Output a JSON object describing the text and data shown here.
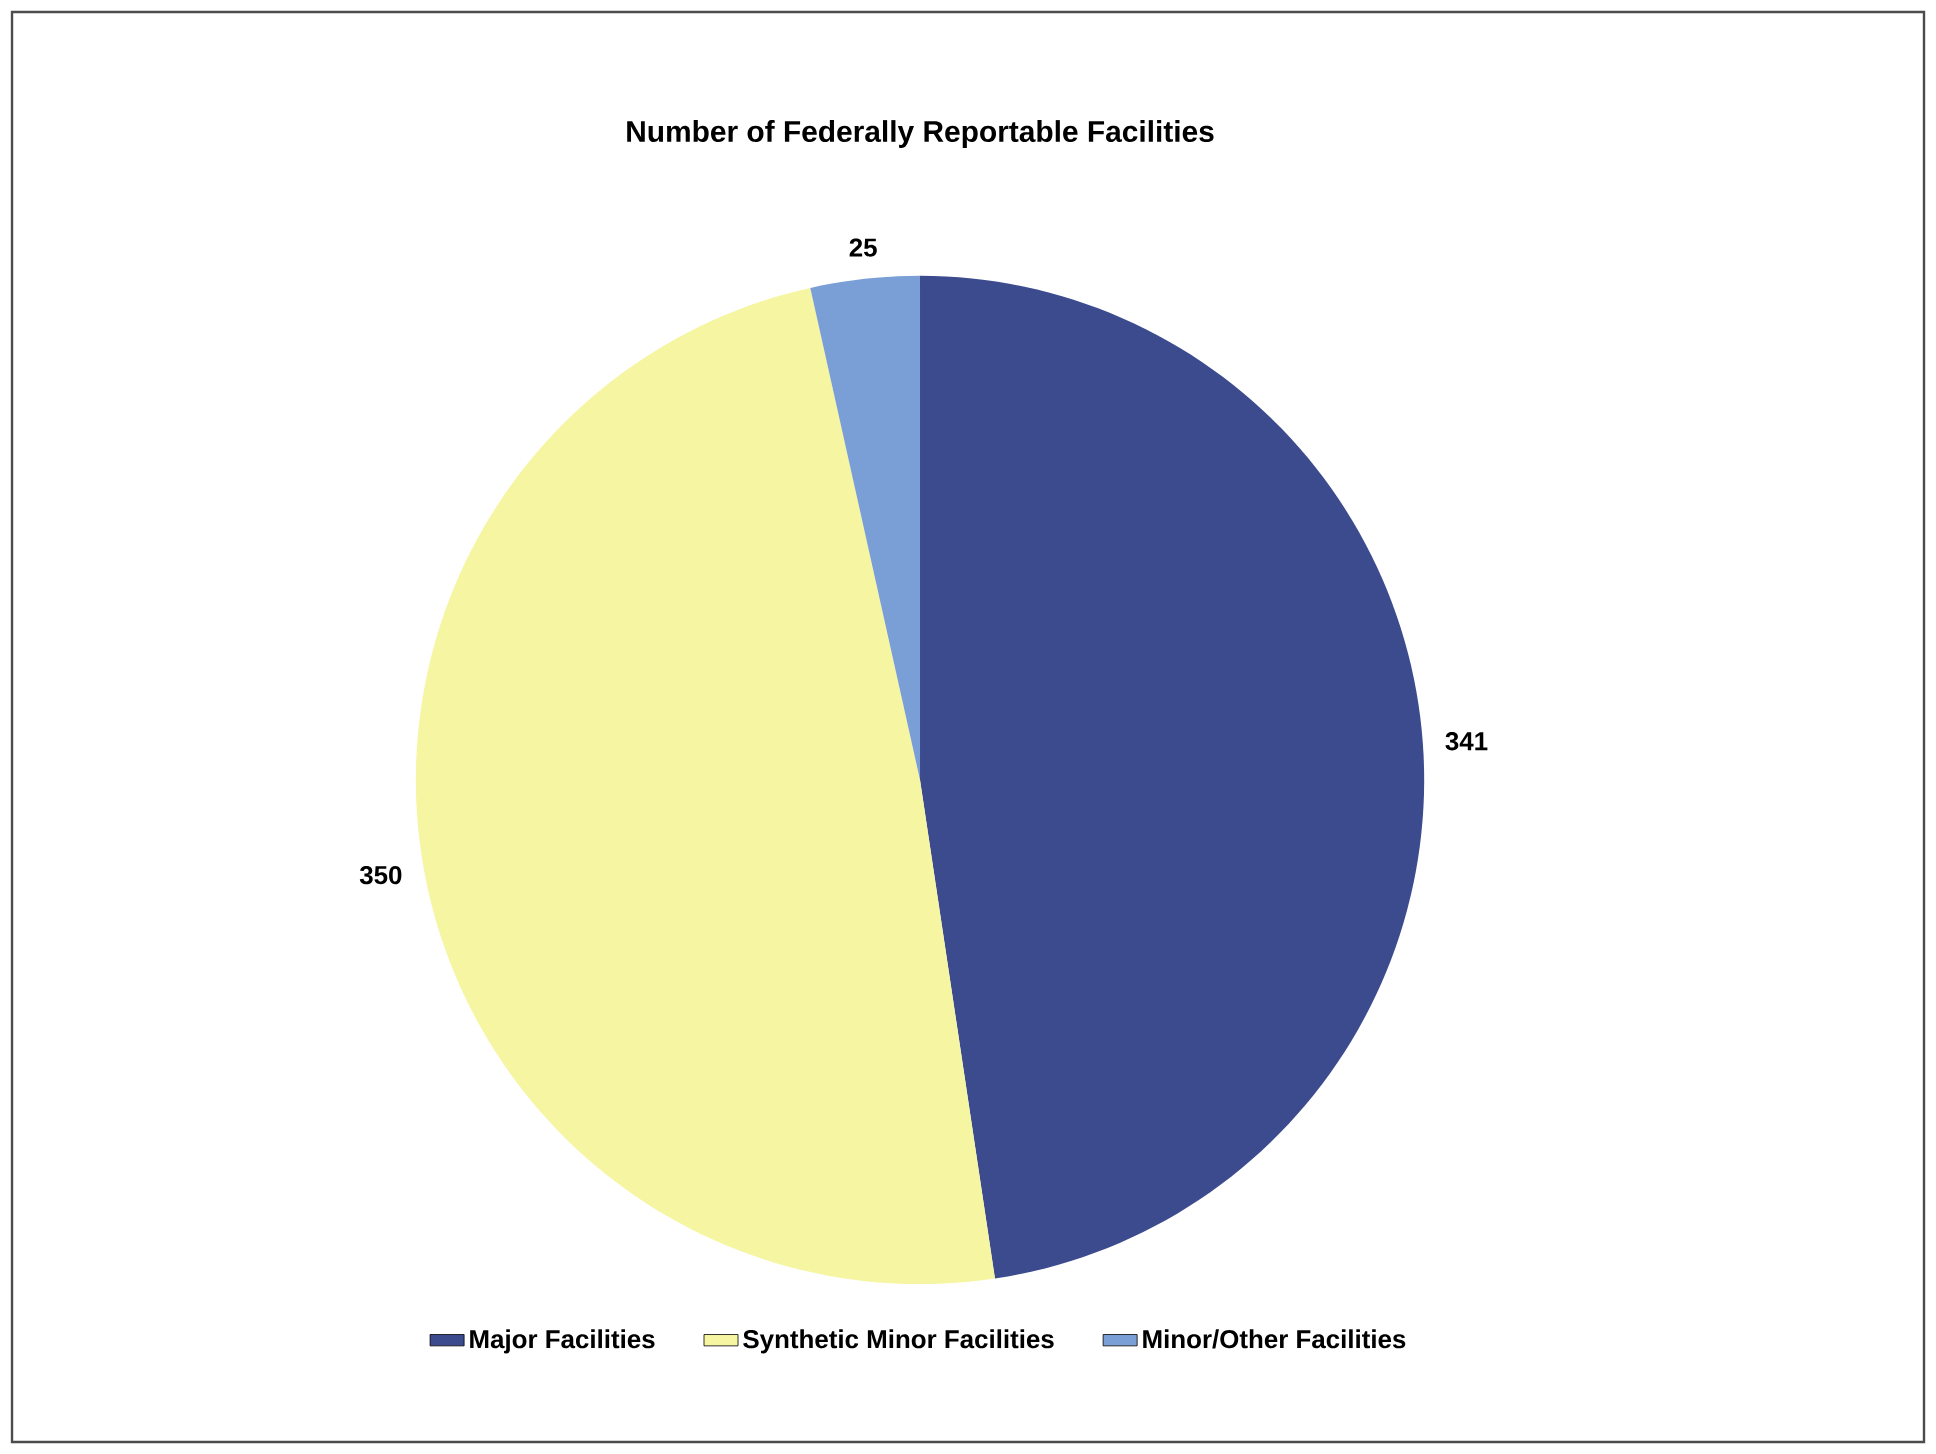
{
  "chart_data": {
    "type": "pie",
    "title": "Number of Federally Reportable Facilities",
    "categories": [
      "Major Facilities",
      "Synthetic Minor Facilities",
      "Minor/Other Facilities"
    ],
    "values": [
      341,
      350,
      25
    ],
    "colors": [
      "#3c4a8e",
      "#f6f5a2",
      "#7a9ed6"
    ],
    "data_labels": true,
    "legend": "bottom"
  }
}
